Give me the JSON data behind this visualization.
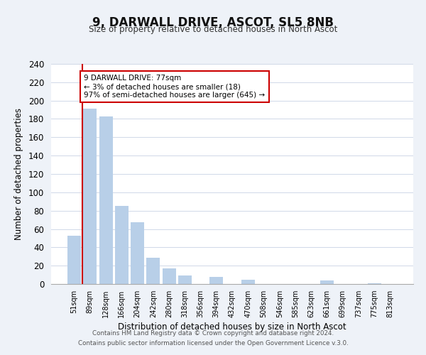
{
  "title": "9, DARWALL DRIVE, ASCOT, SL5 8NB",
  "subtitle": "Size of property relative to detached houses in North Ascot",
  "xlabel": "Distribution of detached houses by size in North Ascot",
  "ylabel": "Number of detached properties",
  "bar_labels": [
    "51sqm",
    "89sqm",
    "128sqm",
    "166sqm",
    "204sqm",
    "242sqm",
    "280sqm",
    "318sqm",
    "356sqm",
    "394sqm",
    "432sqm",
    "470sqm",
    "508sqm",
    "546sqm",
    "585sqm",
    "623sqm",
    "661sqm",
    "699sqm",
    "737sqm",
    "775sqm",
    "813sqm"
  ],
  "bar_values": [
    53,
    191,
    183,
    85,
    67,
    29,
    17,
    9,
    0,
    8,
    0,
    5,
    0,
    0,
    0,
    0,
    4,
    0,
    0,
    1,
    0
  ],
  "bar_color": "#b8cfe8",
  "marker_line_color": "#cc0000",
  "annotation_line1": "9 DARWALL DRIVE: 77sqm",
  "annotation_line2": "← 3% of detached houses are smaller (18)",
  "annotation_line3": "97% of semi-detached houses are larger (645) →",
  "annotation_box_edge_color": "#cc0000",
  "ylim": [
    0,
    240
  ],
  "yticks": [
    0,
    20,
    40,
    60,
    80,
    100,
    120,
    140,
    160,
    180,
    200,
    220,
    240
  ],
  "footer_line1": "Contains HM Land Registry data © Crown copyright and database right 2024.",
  "footer_line2": "Contains public sector information licensed under the Open Government Licence v.3.0.",
  "background_color": "#eef2f8",
  "plot_background_color": "#ffffff",
  "grid_color": "#d0d8e8"
}
